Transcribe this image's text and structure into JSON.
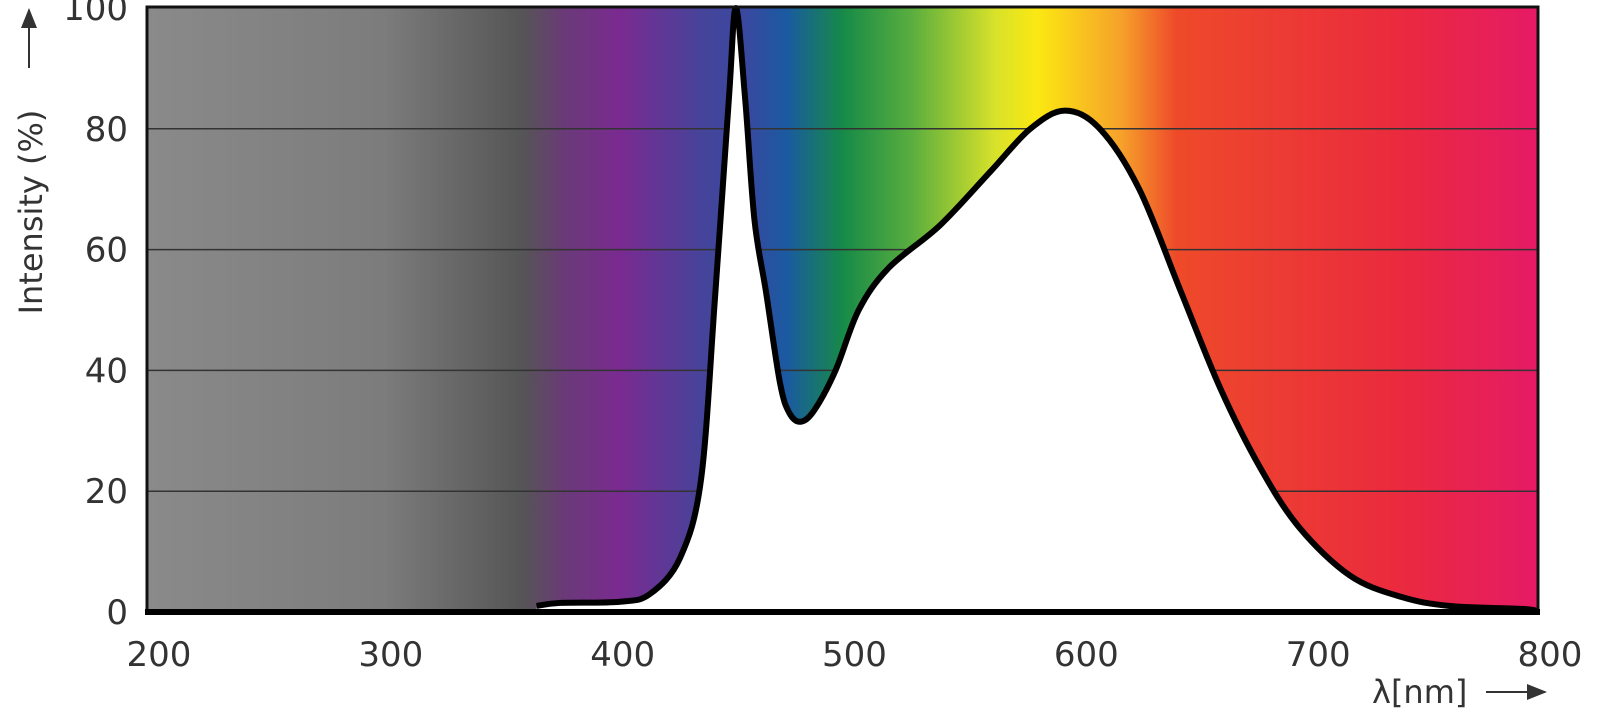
{
  "chart_data": {
    "type": "area",
    "title": "",
    "xlabel": "λ[nm]",
    "ylabel": "Intensity (%)",
    "xlim": [
      200,
      800
    ],
    "ylim": [
      0,
      100
    ],
    "xticks": [
      "200",
      "300",
      "400",
      "500",
      "600",
      "700",
      "800"
    ],
    "yticks": [
      "0",
      "20",
      "40",
      "60",
      "80",
      "100"
    ],
    "grid": "horizontal",
    "background": "visible spectrum color gradient (grey for UV region)",
    "line_color": "#000000",
    "fill_under_curve": "#ffffff",
    "series": [
      {
        "x": [
          368,
          378,
          404,
          417,
          430,
          439,
          445,
          451,
          454,
          458,
          462,
          467,
          473,
          477,
          482,
          488,
          497,
          507,
          520,
          542,
          564,
          581,
          596,
          611,
          628,
          646,
          663,
          680,
          697,
          719,
          741,
          762,
          794,
          800
        ],
        "y": [
          1,
          1.5,
          1.7,
          3,
          9,
          22,
          52,
          85,
          100,
          85,
          65,
          53,
          38,
          33,
          31.5,
          33.5,
          40,
          50,
          57,
          64,
          73,
          80,
          83,
          80,
          70,
          53,
          37,
          24,
          14,
          6,
          2.5,
          1,
          0.5,
          0
        ]
      }
    ]
  }
}
